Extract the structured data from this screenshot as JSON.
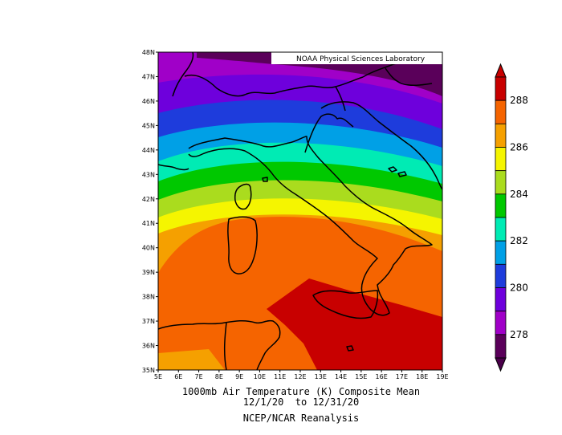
{
  "map": {
    "credit": "NOAA Physical Sciences Laboratory",
    "lon_labels": [
      "5E",
      "6E",
      "7E",
      "8E",
      "9E",
      "10E",
      "11E",
      "12E",
      "13E",
      "14E",
      "15E",
      "16E",
      "17E",
      "18E",
      "19E"
    ],
    "lat_labels": [
      "48N",
      "47N",
      "46N",
      "45N",
      "44N",
      "43N",
      "42N",
      "41N",
      "40N",
      "39N",
      "38N",
      "37N",
      "36N",
      "35N"
    ],
    "lon_range": [
      5,
      19
    ],
    "lat_range": [
      35,
      48
    ],
    "field": "1000mb air temperature (K), filled contours, interval 1 K",
    "bands": [
      {
        "level": "277-278 K",
        "color": "#5a005a",
        "region": "far north-east corner (Austria/Hungary)"
      },
      {
        "level": "278-279 K",
        "color": "#a000c8",
        "region": "northern Alps"
      },
      {
        "level": "279-280 K",
        "color": "#6e00dc",
        "region": "southern Alps"
      },
      {
        "level": "280-281 K",
        "color": "#1e3cdc",
        "region": "Po valley / Croatia"
      },
      {
        "level": "281-282 K",
        "color": "#00a0e6",
        "region": "Ligurian coast"
      },
      {
        "level": "282-283 K",
        "color": "#00ebb4",
        "region": "Corsica north / Adriatic"
      },
      {
        "level": "283-284 K",
        "color": "#00c800",
        "region": "Tuscany"
      },
      {
        "level": "284-285 K",
        "color": "#aadc1e",
        "region": "Lazio / central Adriatic"
      },
      {
        "level": "285-286 K",
        "color": "#f5f500",
        "region": "central Italy"
      },
      {
        "level": "286-287 K",
        "color": "#f5a000",
        "region": "Sardinia north / Campania"
      },
      {
        "level": "287-288 K",
        "color": "#f56400",
        "region": "Tyrrhenian Sea / southern Italy"
      },
      {
        "level": "288-289 K",
        "color": "#c80000",
        "region": "Sicily / Ionian Sea"
      }
    ]
  },
  "colorbar": {
    "labels": [
      "288",
      "286",
      "284",
      "282",
      "280",
      "278"
    ],
    "colors": [
      "#c80000",
      "#f56400",
      "#f5a000",
      "#f5f500",
      "#aadc1e",
      "#00c800",
      "#00ebb4",
      "#00a0e6",
      "#1e3cdc",
      "#6e00dc",
      "#a000c8",
      "#5a005a"
    ]
  },
  "caption": {
    "line1": "1000mb Air Temperature (K) Composite Mean",
    "line2": "12/1/20  to 12/31/20",
    "line3": "NCEP/NCAR Reanalysis"
  }
}
